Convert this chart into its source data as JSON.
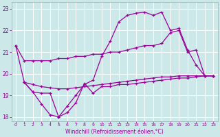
{
  "xlabel": "Windchill (Refroidissement éolien,°C)",
  "bg_color": "#cce8e8",
  "line_color": "#990099",
  "xlim": [
    -0.5,
    23.5
  ],
  "ylim": [
    17.8,
    23.3
  ],
  "xticks": [
    0,
    1,
    2,
    3,
    4,
    5,
    6,
    7,
    8,
    9,
    10,
    11,
    12,
    13,
    14,
    15,
    16,
    17,
    18,
    19,
    20,
    21,
    22,
    23
  ],
  "yticks": [
    18,
    19,
    20,
    21,
    22,
    23
  ],
  "line1_x": [
    0,
    1,
    2,
    3,
    4,
    5,
    6,
    7,
    8,
    9,
    10,
    11,
    12,
    13,
    14,
    15,
    16,
    17,
    18,
    19,
    20,
    21,
    22,
    23
  ],
  "line1_y": [
    21.3,
    20.6,
    20.6,
    20.6,
    20.6,
    20.7,
    20.7,
    20.8,
    20.8,
    20.9,
    20.9,
    21.0,
    21.0,
    21.1,
    21.2,
    21.3,
    21.3,
    21.4,
    21.9,
    22.0,
    21.0,
    21.1,
    19.9,
    19.9
  ],
  "line2_x": [
    0,
    1,
    2,
    3,
    4,
    5,
    6,
    7,
    8,
    9,
    10,
    11,
    12,
    13,
    14,
    15,
    16,
    17,
    18,
    19,
    20,
    21,
    22,
    23
  ],
  "line2_y": [
    21.3,
    19.6,
    19.15,
    18.6,
    18.1,
    18.0,
    18.5,
    19.0,
    19.5,
    19.7,
    20.8,
    21.5,
    22.4,
    22.7,
    22.8,
    22.85,
    22.7,
    22.85,
    22.0,
    22.1,
    21.1,
    20.4,
    19.9,
    19.9
  ],
  "line3_x": [
    1,
    2,
    3,
    4,
    5,
    6,
    7,
    8,
    9,
    10,
    11,
    12,
    13,
    14,
    15,
    16,
    17,
    18,
    19,
    20,
    21,
    22,
    23
  ],
  "line3_y": [
    19.6,
    19.5,
    19.4,
    19.35,
    19.3,
    19.3,
    19.35,
    19.4,
    19.45,
    19.5,
    19.55,
    19.6,
    19.65,
    19.7,
    19.75,
    19.8,
    19.85,
    19.85,
    19.9,
    19.9,
    19.9,
    19.9,
    19.9
  ],
  "line4_x": [
    1,
    2,
    3,
    4,
    5,
    6,
    7,
    8,
    9,
    10,
    11,
    12,
    13,
    14,
    15,
    16,
    17,
    18,
    19,
    20,
    21,
    22,
    23
  ],
  "line4_y": [
    19.6,
    19.15,
    19.1,
    19.1,
    18.0,
    18.2,
    18.65,
    19.55,
    19.1,
    19.4,
    19.4,
    19.5,
    19.5,
    19.55,
    19.6,
    19.65,
    19.7,
    19.75,
    19.8,
    19.8,
    19.85,
    19.9,
    19.9
  ]
}
